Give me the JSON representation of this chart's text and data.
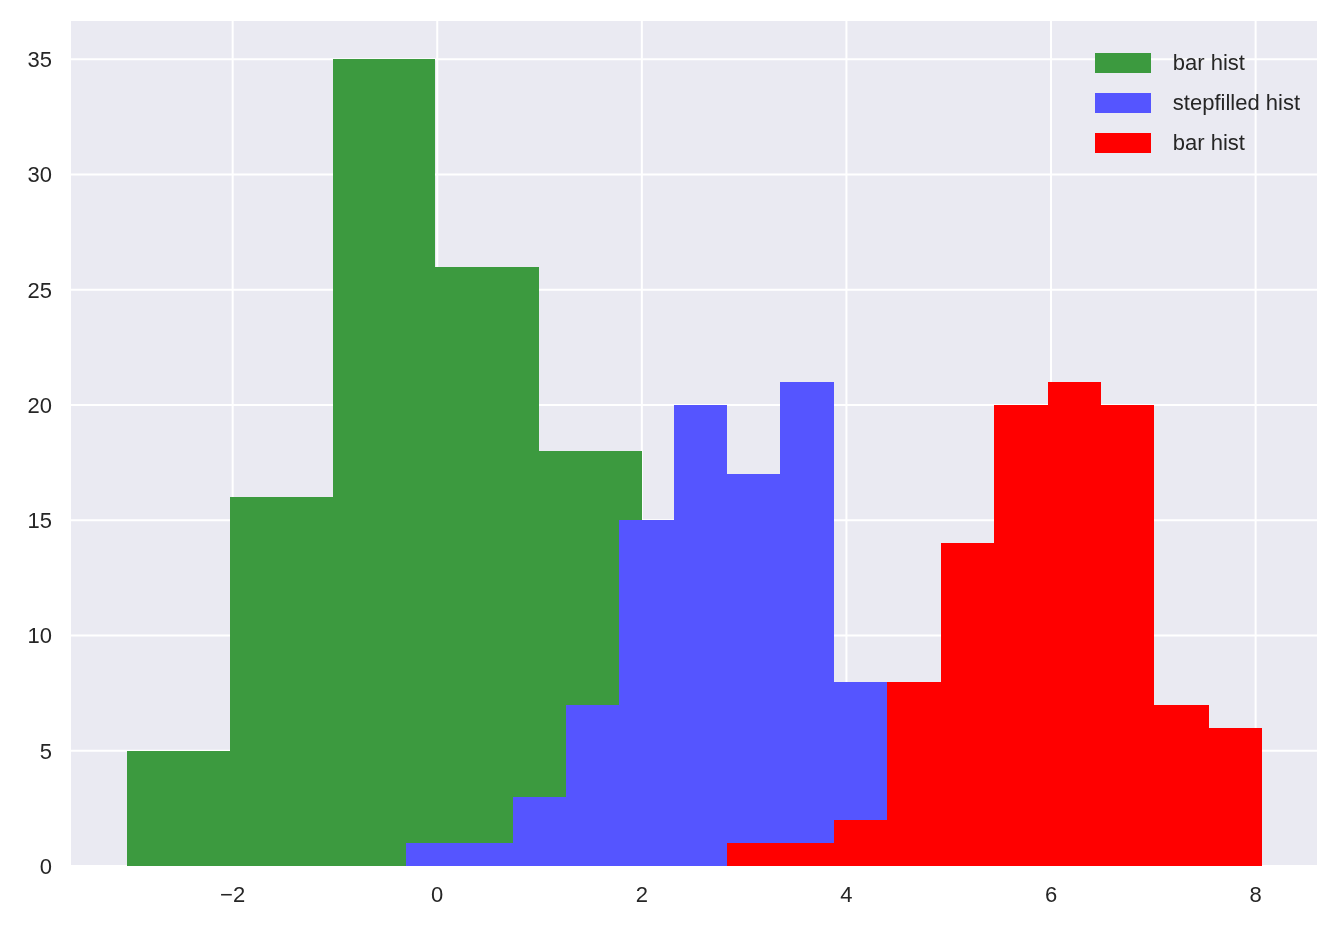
{
  "chart_data": {
    "type": "histogram",
    "bins": [
      -3.03,
      -2.03,
      -1.02,
      -0.31,
      -0.02,
      0.21,
      0.74,
      0.99,
      1.26,
      1.78,
      2.0,
      2.31,
      2.83,
      3.35,
      3.88,
      4.4,
      4.92,
      5.44,
      5.97,
      6.49,
      7.01,
      7.54,
      8.06
    ],
    "series": [
      {
        "name": "bar hist",
        "color": "#3c9a3f",
        "values": [
          5,
          16,
          35,
          35,
          26,
          26,
          26,
          18,
          18,
          18,
          null,
          null,
          null,
          null,
          null,
          null,
          null,
          null,
          null,
          null,
          null,
          null
        ]
      },
      {
        "name": "stepfilled hist",
        "color": "#5555ff",
        "values": [
          null,
          null,
          null,
          1,
          1,
          1,
          3,
          3,
          7,
          15,
          15,
          20,
          17,
          21,
          8,
          null,
          null,
          null,
          null,
          null,
          null,
          null
        ]
      },
      {
        "name": "bar hist",
        "color": "#ff0000",
        "values": [
          null,
          null,
          null,
          null,
          null,
          null,
          null,
          null,
          null,
          null,
          null,
          null,
          1,
          1,
          2,
          8,
          14,
          20,
          21,
          20,
          7,
          6
        ]
      }
    ],
    "xlim": [
      -3.59,
      8.61
    ],
    "xticks": [
      {
        "value": -2,
        "label": "−2"
      },
      0,
      2,
      4,
      6,
      8
    ],
    "ylim": [
      0,
      36.7
    ],
    "yticks": [
      0,
      5,
      10,
      15,
      20,
      25,
      30,
      35
    ],
    "grid": true,
    "legend": "top right"
  }
}
